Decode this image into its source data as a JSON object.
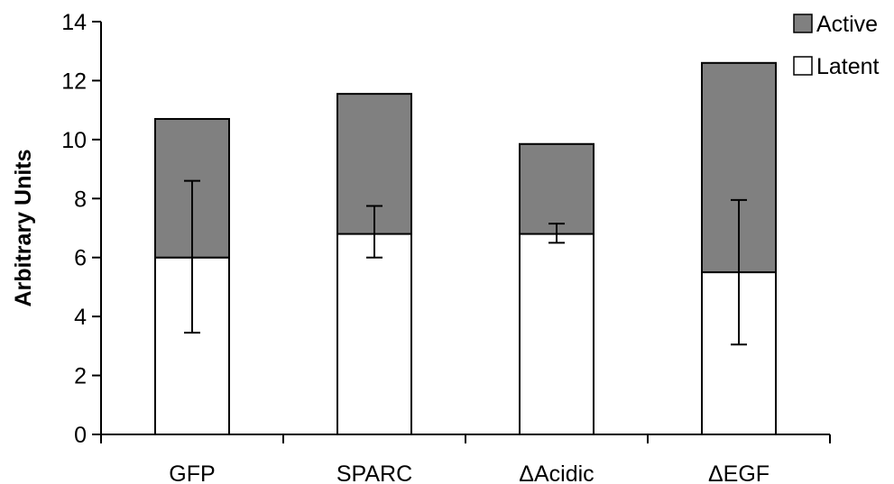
{
  "chart_data": {
    "type": "bar",
    "stacked": true,
    "categories": [
      "GFP",
      "SPARC",
      "ΔAcidic",
      "ΔEGF"
    ],
    "series": [
      {
        "name": "Latent",
        "values": [
          6.0,
          6.8,
          6.8,
          5.5
        ],
        "color": "#ffffff"
      },
      {
        "name": "Active",
        "values": [
          4.7,
          4.75,
          3.05,
          7.1
        ],
        "color": "#808080"
      }
    ],
    "error_bars": {
      "series": "Latent",
      "low": [
        3.45,
        6.0,
        6.5,
        3.05
      ],
      "high": [
        8.6,
        7.75,
        7.15,
        7.95
      ]
    },
    "title": "",
    "xlabel": "",
    "ylabel": "Arbitrary Units",
    "ylim": [
      0,
      14
    ],
    "yticks": [
      0,
      2,
      4,
      6,
      8,
      10,
      12,
      14
    ],
    "grid": false,
    "legend": {
      "position": "top-right",
      "order": [
        "Active",
        "Latent"
      ]
    }
  }
}
